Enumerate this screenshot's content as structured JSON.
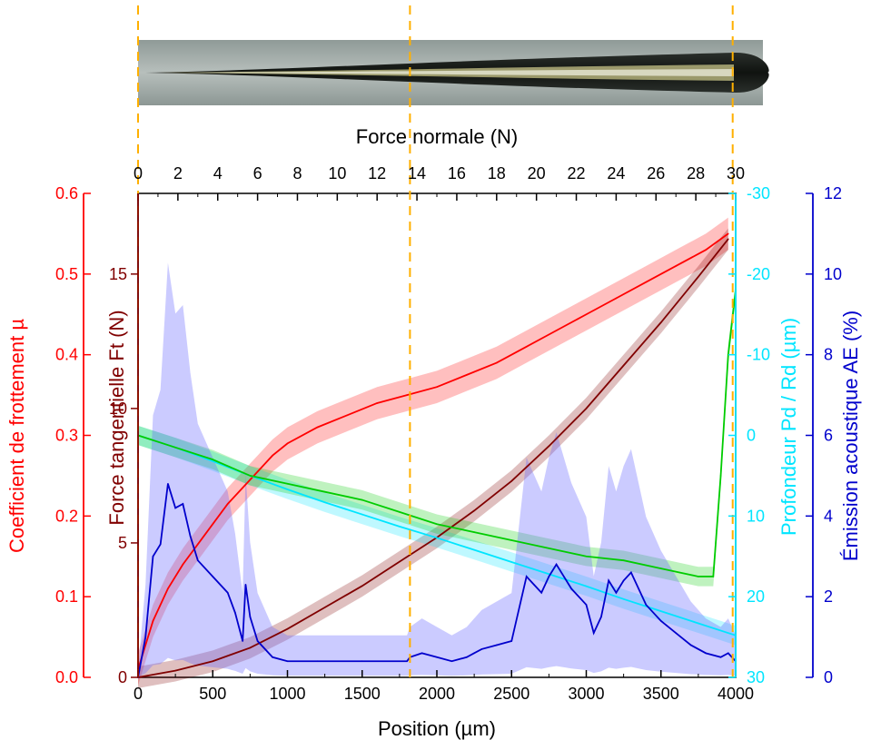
{
  "chart_data": {
    "type": "line",
    "x_bottom": {
      "label": "Position (µm)",
      "range": [
        0,
        4000
      ],
      "ticks": [
        0,
        500,
        1000,
        1500,
        2000,
        2500,
        3000,
        3500,
        4000
      ]
    },
    "x_top": {
      "label": "Force normale (N)",
      "range": [
        0,
        30
      ],
      "ticks": [
        0,
        2,
        4,
        6,
        8,
        10,
        12,
        14,
        16,
        18,
        20,
        22,
        24,
        26,
        28,
        30
      ]
    },
    "y_friction": {
      "label": "Coefficient de frottement µ",
      "range": [
        0,
        0.6
      ],
      "ticks": [
        "0.0",
        "0.1",
        "0.2",
        "0.3",
        "0.4",
        "0.5",
        "0.6"
      ],
      "color": "#ff0000"
    },
    "y_tangential": {
      "label": "Force tangentielle Ft (N)",
      "range": [
        0,
        18
      ],
      "ticks": [
        "0",
        "5",
        "10",
        "15"
      ],
      "color": "#800000"
    },
    "y_depth": {
      "label": "Profondeur Pd / Rd (µm)",
      "range": [
        30,
        -30
      ],
      "ticks": [
        "-30",
        "-20",
        "-10",
        "0",
        "10",
        "20",
        "30"
      ],
      "color": "#00e5ff"
    },
    "y_ae": {
      "label": "Émission acoustique AE (%)",
      "range": [
        0,
        12
      ],
      "ticks": [
        "0",
        "2",
        "4",
        "6",
        "8",
        "10",
        "12"
      ],
      "color": "#0000cc"
    },
    "vertical_markers_x": [
      0,
      1820,
      3980
    ],
    "series": [
      {
        "axis": "y_friction",
        "color": "#ff0000",
        "x": [
          0,
          50,
          100,
          200,
          300,
          400,
          500,
          600,
          700,
          800,
          900,
          1000,
          1200,
          1400,
          1600,
          1800,
          2000,
          2200,
          2400,
          2600,
          2800,
          3000,
          3200,
          3400,
          3600,
          3800,
          3950
        ],
        "y": [
          0.01,
          0.04,
          0.07,
          0.11,
          0.14,
          0.165,
          0.19,
          0.215,
          0.235,
          0.255,
          0.275,
          0.29,
          0.31,
          0.325,
          0.34,
          0.35,
          0.36,
          0.375,
          0.39,
          0.41,
          0.43,
          0.45,
          0.47,
          0.49,
          0.51,
          0.53,
          0.55
        ]
      },
      {
        "axis": "y_tangential",
        "color": "#800000",
        "x": [
          0,
          250,
          500,
          750,
          1000,
          1250,
          1500,
          1750,
          2000,
          2250,
          2500,
          2750,
          3000,
          3250,
          3500,
          3750,
          3950
        ],
        "y": [
          0,
          0.25,
          0.6,
          1.1,
          1.8,
          2.6,
          3.4,
          4.3,
          5.2,
          6.2,
          7.3,
          8.6,
          10.0,
          11.6,
          13.2,
          14.9,
          16.3
        ]
      },
      {
        "axis": "y_depth",
        "color": "#00e5ff",
        "x": [
          0,
          250,
          500,
          750,
          1000,
          1250,
          1500,
          1750,
          2000,
          2250,
          2500,
          2750,
          3000,
          3250,
          3500,
          3750,
          4000
        ],
        "y": [
          0,
          1.5,
          3.2,
          5,
          6.7,
          8.3,
          9.8,
          11.3,
          12.7,
          14.2,
          15.7,
          17.2,
          18.7,
          20.3,
          21.8,
          23.3,
          24.8
        ]
      },
      {
        "axis": "y_depth",
        "color": "#00cc00",
        "x": [
          0,
          250,
          500,
          750,
          1000,
          1250,
          1500,
          1750,
          2000,
          2250,
          2500,
          2750,
          3000,
          3250,
          3500,
          3750,
          3850,
          3900,
          3950,
          4000
        ],
        "y": [
          0,
          1.5,
          3,
          5,
          6,
          7,
          8,
          9.5,
          11,
          12,
          13,
          14,
          15,
          15.5,
          16.5,
          17.5,
          17.5,
          5,
          -10,
          -18
        ]
      },
      {
        "axis": "y_ae",
        "color": "#0000cc",
        "x": [
          0,
          50,
          100,
          150,
          200,
          250,
          300,
          350,
          400,
          500,
          600,
          650,
          700,
          720,
          750,
          800,
          900,
          1000,
          1200,
          1500,
          1800,
          1820,
          1900,
          2000,
          2100,
          2200,
          2250,
          2300,
          2400,
          2500,
          2600,
          2650,
          2700,
          2750,
          2800,
          2850,
          2900,
          3000,
          3050,
          3100,
          3150,
          3200,
          3250,
          3300,
          3350,
          3400,
          3500,
          3600,
          3700,
          3800,
          3900,
          3950,
          4000
        ],
        "y": [
          0,
          1,
          3,
          3.3,
          4.8,
          4.2,
          4.3,
          3.5,
          2.9,
          2.5,
          2.1,
          1.6,
          0.9,
          2.3,
          1.5,
          0.9,
          0.5,
          0.4,
          0.4,
          0.4,
          0.4,
          0.5,
          0.6,
          0.5,
          0.4,
          0.5,
          0.6,
          0.7,
          0.8,
          0.9,
          2.5,
          2.3,
          2.1,
          2.5,
          2.8,
          2.5,
          2.2,
          1.8,
          1.1,
          1.5,
          2.4,
          2.1,
          2.4,
          2.6,
          2.2,
          1.8,
          1.4,
          1.1,
          0.8,
          0.6,
          0.5,
          0.6,
          0.4
        ]
      }
    ]
  }
}
